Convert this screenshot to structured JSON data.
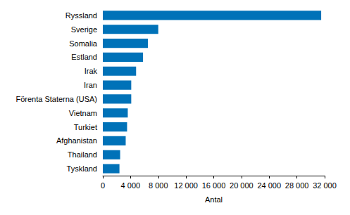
{
  "chart_data": {
    "type": "bar",
    "orientation": "horizontal",
    "categories": [
      "Ryssland",
      "Sverige",
      "Somalia",
      "Estland",
      "Irak",
      "Iran",
      "Förenta Staterna (USA)",
      "Vietnam",
      "Turkiet",
      "Afghanistan",
      "Thailand",
      "Tyskland"
    ],
    "values": [
      31500,
      8000,
      6500,
      5800,
      4800,
      4100,
      4100,
      3600,
      3500,
      3300,
      2500,
      2400
    ],
    "color": "#0072b8",
    "x_label": "Antal",
    "xlim": [
      0,
      32000
    ],
    "xticks": [
      0,
      {
        "value": 4000,
        "label": "4 000"
      },
      {
        "value": 8000,
        "label": "8 000"
      },
      {
        "value": 12000,
        "label": "12 000"
      },
      {
        "value": 16000,
        "label": "16 000"
      },
      {
        "value": 20000,
        "label": "20 000"
      },
      {
        "value": 24000,
        "label": "24 000"
      },
      {
        "value": 28000,
        "label": "28 000"
      },
      {
        "value": 32000,
        "label": "32 000"
      }
    ],
    "grid": false
  }
}
